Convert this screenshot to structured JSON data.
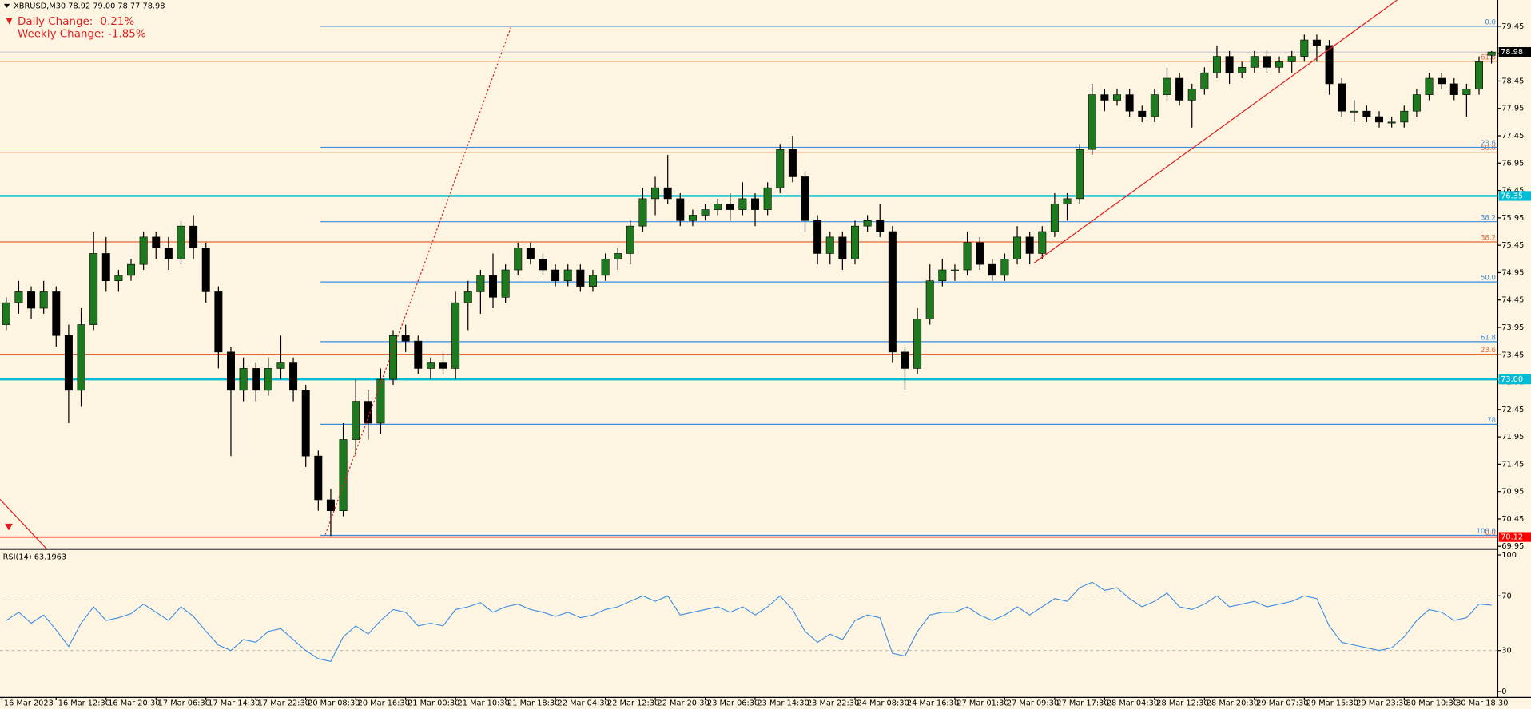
{
  "chart_data": {
    "type": "candlestick",
    "title": "XBRUSD,M30  78.92 79.00 78.77 78.98",
    "daily_change": "Daily Change: -0.21%",
    "weekly_change": "Weekly Change: -1.85%",
    "bull_color": "#1f7a1f",
    "bear_color": "#000000",
    "categories": [
      "16 Mar 2023",
      null,
      null,
      null,
      "16 Mar 12:30",
      null,
      null,
      null,
      "16 Mar 20:30",
      null,
      null,
      null,
      "17 Mar 06:30",
      null,
      null,
      null,
      "17 Mar 14:30",
      null,
      null,
      null,
      "17 Mar 22:30",
      null,
      null,
      null,
      "20 Mar 08:30",
      null,
      null,
      null,
      "20 Mar 16:30",
      null,
      null,
      null,
      "21 Mar 00:30",
      null,
      null,
      null,
      "21 Mar 10:30",
      null,
      null,
      null,
      "21 Mar 18:30",
      null,
      null,
      null,
      "22 Mar 04:30",
      null,
      null,
      null,
      "22 Mar 12:30",
      null,
      null,
      null,
      "22 Mar 20:30",
      null,
      null,
      null,
      "23 Mar 06:30",
      null,
      null,
      null,
      "23 Mar 14:30",
      null,
      null,
      null,
      "23 Mar 22:30",
      null,
      null,
      null,
      "24 Mar 08:30",
      null,
      null,
      null,
      "24 Mar 16:30",
      null,
      null,
      null,
      "27 Mar 01:30",
      null,
      null,
      null,
      "27 Mar 09:30",
      null,
      null,
      null,
      "27 Mar 17:30",
      null,
      null,
      null,
      "28 Mar 04:30",
      null,
      null,
      null,
      "28 Mar 12:30",
      null,
      null,
      null,
      "28 Mar 20:30",
      null,
      null,
      null,
      "29 Mar 07:30",
      null,
      null,
      null,
      "29 Mar 15:30",
      null,
      null,
      null,
      "29 Mar 23:30",
      null,
      null,
      null,
      "30 Mar 10:30",
      null,
      null,
      null,
      "30 Mar 18:30",
      null,
      null,
      null
    ],
    "ohlc": [
      [
        74.0,
        74.5,
        73.9,
        74.4
      ],
      [
        74.4,
        74.8,
        74.2,
        74.6
      ],
      [
        74.6,
        74.7,
        74.1,
        74.3
      ],
      [
        74.3,
        74.8,
        74.2,
        74.6
      ],
      [
        74.6,
        74.7,
        73.6,
        73.8
      ],
      [
        73.8,
        74.0,
        72.2,
        72.8
      ],
      [
        72.8,
        74.3,
        72.5,
        74.0
      ],
      [
        74.0,
        75.7,
        73.9,
        75.3
      ],
      [
        75.3,
        75.6,
        74.6,
        74.8
      ],
      [
        74.8,
        75.0,
        74.6,
        74.9
      ],
      [
        74.9,
        75.2,
        74.8,
        75.1
      ],
      [
        75.1,
        75.7,
        75.0,
        75.6
      ],
      [
        75.6,
        75.7,
        75.2,
        75.4
      ],
      [
        75.4,
        75.6,
        75.0,
        75.2
      ],
      [
        75.2,
        75.9,
        75.1,
        75.8
      ],
      [
        75.8,
        76.0,
        75.2,
        75.4
      ],
      [
        75.4,
        75.5,
        74.4,
        74.6
      ],
      [
        74.6,
        74.7,
        73.2,
        73.5
      ],
      [
        73.5,
        73.6,
        71.6,
        72.8
      ],
      [
        72.8,
        73.4,
        72.6,
        73.2
      ],
      [
        73.2,
        73.3,
        72.6,
        72.8
      ],
      [
        72.8,
        73.4,
        72.7,
        73.2
      ],
      [
        73.2,
        73.8,
        73.0,
        73.3
      ],
      [
        73.3,
        73.4,
        72.6,
        72.8
      ],
      [
        72.8,
        72.9,
        71.4,
        71.6
      ],
      [
        71.6,
        71.7,
        70.6,
        70.8
      ],
      [
        70.8,
        71.0,
        70.14,
        70.6
      ],
      [
        70.6,
        72.2,
        70.5,
        71.9
      ],
      [
        71.9,
        73.0,
        71.6,
        72.6
      ],
      [
        72.6,
        72.8,
        71.9,
        72.2
      ],
      [
        72.2,
        73.2,
        72.0,
        73.0
      ],
      [
        73.0,
        73.9,
        72.9,
        73.8
      ],
      [
        73.8,
        74.0,
        73.5,
        73.7
      ],
      [
        73.7,
        73.8,
        73.1,
        73.2
      ],
      [
        73.2,
        73.4,
        73.0,
        73.3
      ],
      [
        73.3,
        73.5,
        73.1,
        73.2
      ],
      [
        73.2,
        74.6,
        73.0,
        74.4
      ],
      [
        74.4,
        74.8,
        73.9,
        74.6
      ],
      [
        74.6,
        75.0,
        74.2,
        74.9
      ],
      [
        74.9,
        75.3,
        74.3,
        74.5
      ],
      [
        74.5,
        75.1,
        74.4,
        75.0
      ],
      [
        75.0,
        75.5,
        74.9,
        75.4
      ],
      [
        75.4,
        75.5,
        75.1,
        75.2
      ],
      [
        75.2,
        75.3,
        74.9,
        75.0
      ],
      [
        75.0,
        75.1,
        74.7,
        74.8
      ],
      [
        74.8,
        75.1,
        74.7,
        75.0
      ],
      [
        75.0,
        75.1,
        74.6,
        74.7
      ],
      [
        74.7,
        75.0,
        74.6,
        74.9
      ],
      [
        74.9,
        75.3,
        74.8,
        75.2
      ],
      [
        75.2,
        75.4,
        75.0,
        75.3
      ],
      [
        75.3,
        75.9,
        75.1,
        75.8
      ],
      [
        75.8,
        76.5,
        75.7,
        76.3
      ],
      [
        76.3,
        76.7,
        76.0,
        76.5
      ],
      [
        76.5,
        77.1,
        76.2,
        76.3
      ],
      [
        76.3,
        76.4,
        75.8,
        75.9
      ],
      [
        75.9,
        76.1,
        75.8,
        76.0
      ],
      [
        76.0,
        76.2,
        75.9,
        76.1
      ],
      [
        76.1,
        76.3,
        76.0,
        76.2
      ],
      [
        76.2,
        76.4,
        75.9,
        76.1
      ],
      [
        76.1,
        76.6,
        76.0,
        76.3
      ],
      [
        76.3,
        76.4,
        75.8,
        76.1
      ],
      [
        76.1,
        76.6,
        76.0,
        76.5
      ],
      [
        76.5,
        77.3,
        76.4,
        77.2
      ],
      [
        77.2,
        77.45,
        76.6,
        76.7
      ],
      [
        76.7,
        76.8,
        75.7,
        75.9
      ],
      [
        75.9,
        76.0,
        75.1,
        75.3
      ],
      [
        75.3,
        75.7,
        75.1,
        75.6
      ],
      [
        75.6,
        75.7,
        75.0,
        75.2
      ],
      [
        75.2,
        75.9,
        75.1,
        75.8
      ],
      [
        75.8,
        76.0,
        75.7,
        75.9
      ],
      [
        75.9,
        76.2,
        75.6,
        75.7
      ],
      [
        75.7,
        75.8,
        73.3,
        73.5
      ],
      [
        73.5,
        73.6,
        72.8,
        73.2
      ],
      [
        73.2,
        74.3,
        73.1,
        74.1
      ],
      [
        74.1,
        75.1,
        74.0,
        74.8
      ],
      [
        74.8,
        75.2,
        74.7,
        75.0
      ],
      [
        75.0,
        75.1,
        74.8,
        75.0
      ],
      [
        75.0,
        75.7,
        74.9,
        75.5
      ],
      [
        75.5,
        75.6,
        75.0,
        75.1
      ],
      [
        75.1,
        75.2,
        74.8,
        74.9
      ],
      [
        74.9,
        75.3,
        74.8,
        75.2
      ],
      [
        75.2,
        75.8,
        75.1,
        75.6
      ],
      [
        75.6,
        75.7,
        75.1,
        75.3
      ],
      [
        75.3,
        75.8,
        75.2,
        75.7
      ],
      [
        75.7,
        76.4,
        75.6,
        76.2
      ],
      [
        76.2,
        76.4,
        75.9,
        76.3
      ],
      [
        76.3,
        77.3,
        76.2,
        77.2
      ],
      [
        77.2,
        78.4,
        77.1,
        78.2
      ],
      [
        78.2,
        78.3,
        77.9,
        78.1
      ],
      [
        78.1,
        78.3,
        78.0,
        78.2
      ],
      [
        78.2,
        78.3,
        77.8,
        77.9
      ],
      [
        77.9,
        78.0,
        77.7,
        77.8
      ],
      [
        77.8,
        78.3,
        77.7,
        78.2
      ],
      [
        78.2,
        78.7,
        78.1,
        78.5
      ],
      [
        78.5,
        78.6,
        78.0,
        78.1
      ],
      [
        78.1,
        78.4,
        77.6,
        78.3
      ],
      [
        78.3,
        78.7,
        78.2,
        78.6
      ],
      [
        78.6,
        79.1,
        78.5,
        78.9
      ],
      [
        78.9,
        79.0,
        78.4,
        78.6
      ],
      [
        78.6,
        78.8,
        78.5,
        78.7
      ],
      [
        78.7,
        79.0,
        78.6,
        78.9
      ],
      [
        78.9,
        79.0,
        78.6,
        78.7
      ],
      [
        78.7,
        78.9,
        78.6,
        78.8
      ],
      [
        78.8,
        79.0,
        78.6,
        78.9
      ],
      [
        78.9,
        79.3,
        78.8,
        79.2
      ],
      [
        79.2,
        79.3,
        78.8,
        79.1
      ],
      [
        79.1,
        79.2,
        78.2,
        78.4
      ],
      [
        78.4,
        78.5,
        77.8,
        77.9
      ],
      [
        77.9,
        78.1,
        77.7,
        77.9
      ],
      [
        77.9,
        78.0,
        77.7,
        77.8
      ],
      [
        77.8,
        77.9,
        77.6,
        77.7
      ],
      [
        77.7,
        77.8,
        77.6,
        77.7
      ],
      [
        77.7,
        78.0,
        77.6,
        77.9
      ],
      [
        77.9,
        78.3,
        77.8,
        78.2
      ],
      [
        78.2,
        78.6,
        78.1,
        78.5
      ],
      [
        78.5,
        78.6,
        78.3,
        78.4
      ],
      [
        78.4,
        78.5,
        78.1,
        78.2
      ],
      [
        78.2,
        78.4,
        77.8,
        78.3
      ],
      [
        78.3,
        78.9,
        78.2,
        78.8
      ],
      [
        78.92,
        79.0,
        78.77,
        78.98
      ]
    ],
    "ylim": [
      69.9,
      79.93
    ],
    "yticks": [
      69.95,
      70.45,
      70.95,
      71.45,
      71.95,
      72.45,
      72.95,
      73.45,
      73.95,
      74.45,
      74.95,
      75.45,
      75.95,
      76.45,
      76.95,
      77.45,
      77.95,
      78.45,
      78.95,
      79.45
    ],
    "current_price": 78.98,
    "price_lines": [
      {
        "value": 76.35,
        "label": "76.35",
        "color": "#00bcd4"
      },
      {
        "value": 73,
        "label": "73.00",
        "color": "#00bcd4"
      },
      {
        "value": 70.12,
        "label": "70.12",
        "color": "#ff0000"
      }
    ],
    "fibo_blue": {
      "color": "#3c8ce0",
      "levels": [
        {
          "value": 79.45,
          "label": "0.0"
        },
        {
          "value": 77.24,
          "label": "23.6"
        },
        {
          "value": 75.88,
          "label": "38.2"
        },
        {
          "value": 74.78,
          "label": "50.0"
        },
        {
          "value": 73.69,
          "label": "61.8"
        },
        {
          "value": 72.18,
          "label": "78"
        },
        {
          "value": 70.15,
          "label": "100.0"
        }
      ]
    },
    "fibo_orange": {
      "color": "#e8673a",
      "levels": [
        {
          "value": 78.81,
          "label": "61.8"
        },
        {
          "value": 77.15,
          "label": "50.0"
        },
        {
          "value": 75.51,
          "label": "38.2"
        },
        {
          "value": 73.46,
          "label": "23.6"
        },
        {
          "value": 70.12,
          "label": "0.0"
        }
      ]
    },
    "rsi": {
      "title": "RSI(14) 63.1963",
      "color": "#3c8ce0",
      "ylim": [
        0,
        100
      ],
      "yticks": [
        0,
        30,
        70,
        100
      ],
      "levels": [
        30,
        70
      ],
      "values": [
        52,
        58,
        50,
        56,
        45,
        33,
        50,
        62,
        52,
        54,
        57,
        64,
        58,
        52,
        62,
        55,
        44,
        34,
        30,
        38,
        36,
        44,
        46,
        38,
        30,
        24,
        22,
        40,
        48,
        42,
        52,
        60,
        58,
        48,
        50,
        48,
        60,
        62,
        65,
        58,
        62,
        64,
        60,
        58,
        55,
        58,
        54,
        56,
        60,
        62,
        66,
        70,
        66,
        70,
        56,
        58,
        60,
        62,
        58,
        62,
        56,
        62,
        70,
        60,
        44,
        36,
        42,
        38,
        52,
        56,
        54,
        28,
        26,
        44,
        56,
        58,
        58,
        62,
        56,
        52,
        56,
        62,
        56,
        62,
        68,
        66,
        76,
        80,
        74,
        76,
        68,
        62,
        66,
        72,
        62,
        60,
        64,
        70,
        62,
        64,
        66,
        62,
        64,
        66,
        70,
        68,
        48,
        36,
        34,
        32,
        30,
        32,
        40,
        52,
        60,
        58,
        52,
        54,
        64,
        63.1963
      ]
    }
  }
}
